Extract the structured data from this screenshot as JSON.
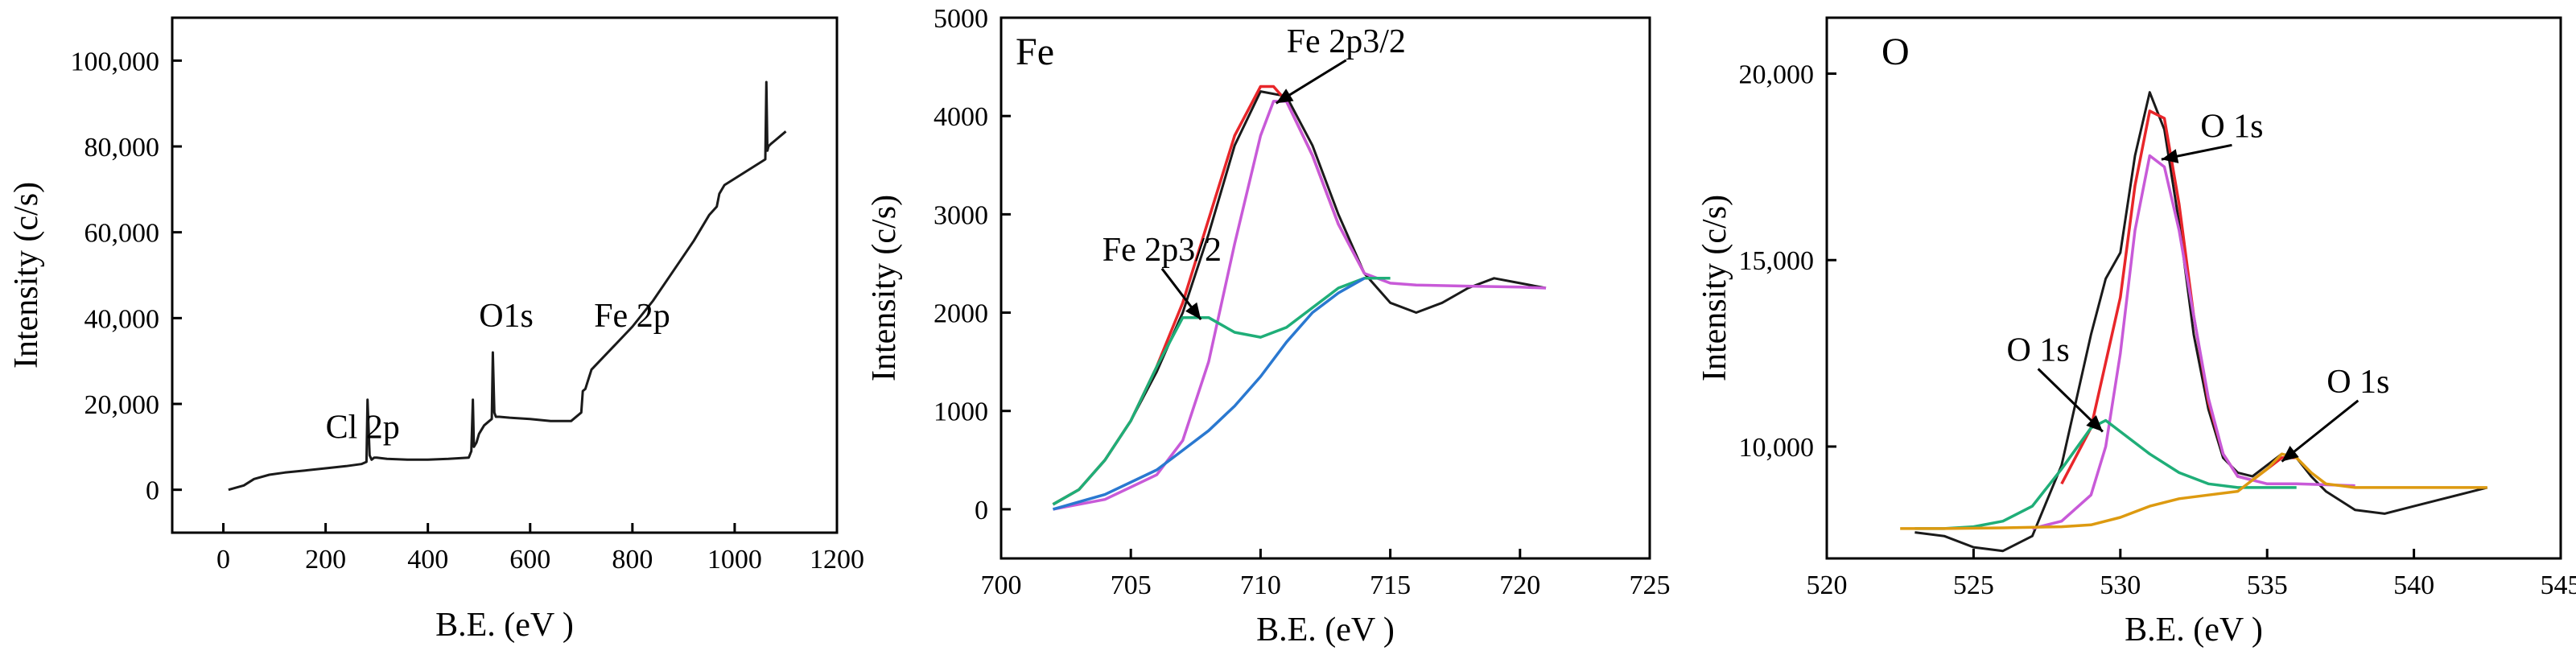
{
  "colors": {
    "axis": "#000000",
    "raw": "#1a1a1a",
    "envelope": "#e8262a",
    "component_purple": "#c85ad8",
    "component_green": "#1fae78",
    "background_blue": "#2a78d0",
    "background_orange": "#dd9a10"
  },
  "chart_data": [
    {
      "type": "line",
      "name": "survey",
      "xlabel": "B.E. (eV )",
      "ylabel": "Intensity (c/s)",
      "xlim": [
        -100,
        1200
      ],
      "ylim": [
        -10000,
        110000
      ],
      "xticks": [
        0,
        200,
        400,
        600,
        800,
        1000,
        1200
      ],
      "xtick_labels": [
        "0",
        "200",
        "400",
        "600",
        "800",
        "1000",
        "1200"
      ],
      "yticks": [
        0,
        20000,
        40000,
        60000,
        80000,
        100000
      ],
      "ytick_labels": [
        "0",
        "20,000",
        "40,000",
        "60,000",
        "80,000",
        "100,000"
      ],
      "series": [
        {
          "role": "raw",
          "color": "#1a1a1a",
          "x": [
            10,
            40,
            60,
            90,
            120,
            160,
            200,
            240,
            270,
            280,
            282,
            286,
            290,
            295,
            300,
            320,
            360,
            400,
            440,
            480,
            485,
            488,
            490,
            495,
            500,
            510,
            520,
            525,
            527,
            530,
            533,
            540,
            560,
            600,
            640,
            680,
            700,
            703,
            708,
            712,
            720,
            760,
            800,
            840,
            880,
            920,
            950,
            965,
            970,
            980,
            1000,
            1020,
            1040,
            1060,
            1062,
            1064,
            1066,
            1070,
            1080,
            1090,
            1100
          ],
          "y": [
            0,
            1000,
            2500,
            3500,
            4000,
            4500,
            5000,
            5500,
            6000,
            6500,
            21000,
            8000,
            7000,
            7500,
            7500,
            7200,
            7000,
            7000,
            7200,
            7500,
            9000,
            21000,
            10000,
            11000,
            13000,
            15000,
            16000,
            16500,
            32000,
            18000,
            17000,
            17000,
            16800,
            16500,
            16000,
            16000,
            18000,
            23000,
            23500,
            25000,
            28000,
            33000,
            38000,
            44000,
            51000,
            58000,
            64000,
            66000,
            69000,
            71000,
            72500,
            74000,
            75500,
            77000,
            95000,
            79000,
            80000,
            80500,
            81500,
            82500,
            83500
          ]
        }
      ],
      "annotations": [
        {
          "text": "Cl 2p",
          "x": 200,
          "y": 12000
        },
        {
          "text": "O1s",
          "x": 500,
          "y": 38000
        },
        {
          "text": "Fe 2p",
          "x": 725,
          "y": 38000
        }
      ]
    },
    {
      "type": "line",
      "name": "fe",
      "tag": "Fe",
      "xlabel": "B.E. (eV )",
      "ylabel": "Intensity (c/s)",
      "xlim": [
        700,
        725
      ],
      "ylim": [
        -500,
        5000
      ],
      "xticks": [
        700,
        705,
        710,
        715,
        720,
        725
      ],
      "xtick_labels": [
        "700",
        "705",
        "710",
        "715",
        "720",
        "725"
      ],
      "yticks": [
        0,
        1000,
        2000,
        3000,
        4000,
        5000
      ],
      "ytick_labels": [
        "0",
        "1000",
        "2000",
        "3000",
        "4000",
        "5000"
      ],
      "series": [
        {
          "role": "raw",
          "color": "#1a1a1a",
          "x": [
            702,
            703,
            704,
            705,
            706,
            707,
            708,
            709,
            710,
            711,
            712,
            713,
            714,
            715,
            716,
            717,
            718,
            719,
            720,
            721
          ],
          "y": [
            50,
            200,
            500,
            900,
            1400,
            2000,
            2800,
            3700,
            4250,
            4200,
            3700,
            3000,
            2400,
            2100,
            2000,
            2100,
            2250,
            2350,
            2300,
            2250
          ]
        },
        {
          "role": "envelope",
          "color": "#e8262a",
          "x": [
            702,
            703,
            704,
            705,
            706,
            707,
            708,
            709,
            710,
            710.5,
            711,
            712,
            713,
            714
          ],
          "y": [
            50,
            200,
            500,
            900,
            1450,
            2100,
            2950,
            3800,
            4300,
            4300,
            4150,
            3600,
            2900,
            2400
          ]
        },
        {
          "role": "component",
          "color": "#c85ad8",
          "x": [
            702,
            704,
            706,
            707,
            708,
            709,
            710,
            710.5,
            711,
            712,
            713,
            714,
            715,
            716,
            718,
            720,
            721
          ],
          "y": [
            0,
            100,
            350,
            700,
            1500,
            2700,
            3800,
            4150,
            4150,
            3600,
            2900,
            2400,
            2300,
            2280,
            2270,
            2260,
            2250
          ]
        },
        {
          "role": "component",
          "color": "#1fae78",
          "x": [
            702,
            703,
            704,
            705,
            706,
            707,
            708,
            709,
            710,
            711,
            712,
            713,
            714,
            715
          ],
          "y": [
            50,
            200,
            500,
            900,
            1450,
            1950,
            1950,
            1800,
            1750,
            1850,
            2050,
            2250,
            2350,
            2350
          ]
        },
        {
          "role": "background",
          "color": "#2a78d0",
          "x": [
            702,
            704,
            706,
            707,
            708,
            709,
            710,
            711,
            712,
            713,
            714
          ],
          "y": [
            0,
            150,
            400,
            600,
            800,
            1050,
            1350,
            1700,
            2000,
            2200,
            2350
          ]
        }
      ],
      "annotations": [
        {
          "text": "Fe 2p3/2",
          "x": 713.3,
          "y": 4650,
          "arrow_to": [
            710.6,
            4130
          ]
        },
        {
          "text": "Fe 2p3/2",
          "x": 706.2,
          "y": 2530,
          "arrow_to": [
            707.7,
            1930
          ]
        }
      ]
    },
    {
      "type": "line",
      "name": "o",
      "tag": "O",
      "xlabel": "B.E. (eV )",
      "ylabel": "Intensity (c/s)",
      "xlim": [
        520,
        545
      ],
      "ylim": [
        7000,
        21500
      ],
      "xticks": [
        520,
        525,
        530,
        535,
        540,
        545
      ],
      "xtick_labels": [
        "520",
        "525",
        "530",
        "535",
        "540",
        "545"
      ],
      "yticks": [
        10000,
        15000,
        20000
      ],
      "ytick_labels": [
        "10,000",
        "15,000",
        "20,000"
      ],
      "series": [
        {
          "role": "raw",
          "color": "#1a1a1a",
          "x": [
            523,
            524,
            525,
            526,
            527,
            528,
            529,
            529.5,
            530,
            530.5,
            531,
            531.5,
            532,
            532.5,
            533,
            533.5,
            534,
            534.5,
            535,
            535.5,
            536,
            536.5,
            537,
            538,
            539,
            540,
            541,
            542,
            542.5
          ],
          "y": [
            7700,
            7600,
            7300,
            7200,
            7600,
            9500,
            13000,
            14500,
            15200,
            17800,
            19500,
            18500,
            16000,
            13000,
            11000,
            9700,
            9300,
            9200,
            9500,
            9800,
            9700,
            9200,
            8800,
            8300,
            8200,
            8400,
            8600,
            8800,
            8900
          ]
        },
        {
          "role": "envelope",
          "color": "#e8262a",
          "x": [
            528,
            529,
            530,
            530.5,
            531,
            531.5,
            532,
            532.5,
            533,
            533.5,
            534,
            534.5,
            535,
            535.5,
            536
          ],
          "y": [
            9000,
            10500,
            14000,
            17000,
            19000,
            18800,
            16500,
            13500,
            11200,
            9800,
            9200,
            9100,
            9400,
            9700,
            9700
          ]
        },
        {
          "role": "component",
          "color": "#c85ad8",
          "x": [
            527,
            528,
            529,
            529.5,
            530,
            530.5,
            531,
            531.5,
            532,
            532.5,
            533,
            533.5,
            534,
            535,
            536,
            538
          ],
          "y": [
            7800,
            8000,
            8700,
            10000,
            12500,
            15800,
            17800,
            17500,
            15800,
            13500,
            11300,
            9800,
            9200,
            9000,
            9000,
            8950
          ]
        },
        {
          "role": "component",
          "color": "#1fae78",
          "x": [
            523,
            524,
            525,
            526,
            527,
            528,
            529,
            529.5,
            530,
            531,
            532,
            533,
            534,
            535,
            536
          ],
          "y": [
            7800,
            7800,
            7850,
            8000,
            8400,
            9400,
            10500,
            10700,
            10400,
            9800,
            9300,
            9000,
            8900,
            8900,
            8900
          ]
        },
        {
          "role": "background",
          "color": "#dd9a10",
          "x": [
            522.5,
            524,
            526,
            528,
            529,
            530,
            531,
            532,
            533,
            534,
            535,
            535.5,
            536,
            536.5,
            537,
            538,
            540,
            542.5
          ],
          "y": [
            7800,
            7800,
            7820,
            7850,
            7900,
            8100,
            8400,
            8600,
            8700,
            8800,
            9400,
            9800,
            9700,
            9300,
            9000,
            8900,
            8900,
            8900
          ]
        }
      ],
      "annotations": [
        {
          "text": "O 1s",
          "x": 533.8,
          "y": 18300,
          "arrow_to": [
            531.4,
            17700
          ]
        },
        {
          "text": "O 1s",
          "x": 527.2,
          "y": 12300,
          "arrow_to": [
            529.4,
            10400
          ]
        },
        {
          "text": "O 1s",
          "x": 538.1,
          "y": 11450,
          "arrow_to": [
            535.5,
            9600
          ]
        }
      ]
    }
  ]
}
